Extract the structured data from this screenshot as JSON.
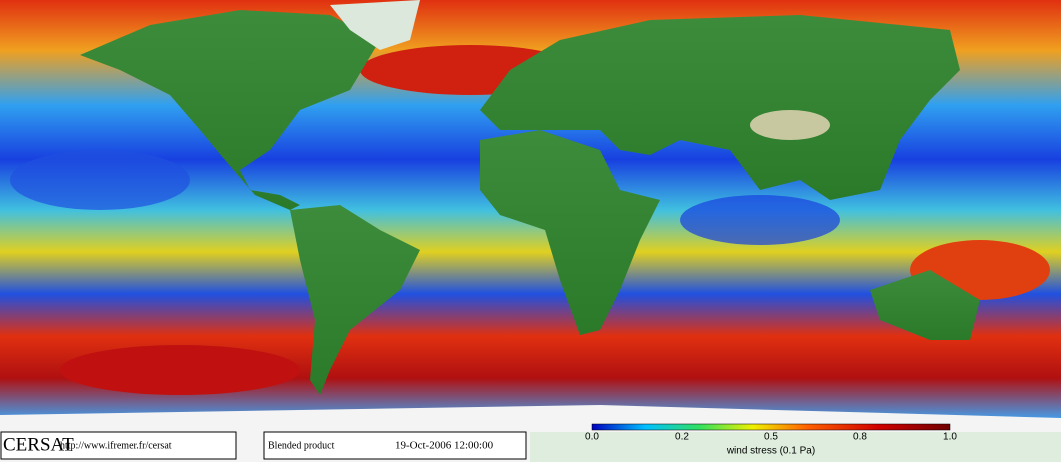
{
  "footer": {
    "logo": "CERSAT",
    "url": "http://www.ifremer.fr/cersat",
    "product": "Blended product",
    "date": "19-Oct-2006 12:00:00"
  },
  "colorbar": {
    "ticks": [
      "0.0",
      "0.2",
      "0.5",
      "0.8",
      "1.0"
    ],
    "label": "wind stress (0.1 Pa)"
  }
}
